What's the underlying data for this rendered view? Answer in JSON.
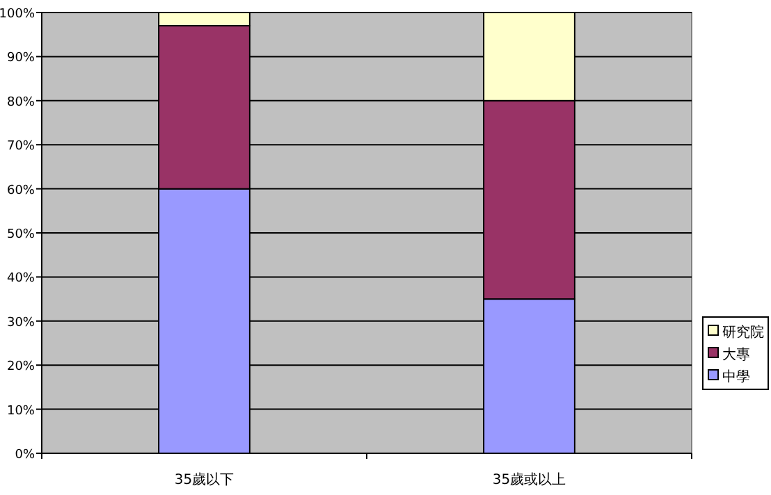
{
  "chart_data": {
    "type": "bar",
    "stacked": true,
    "categories": [
      "35歲以下",
      "35歲或以上"
    ],
    "series": [
      {
        "name": "中學",
        "color": "#9999ff",
        "values": [
          60,
          35
        ]
      },
      {
        "name": "大專",
        "color": "#993366",
        "values": [
          37,
          45
        ]
      },
      {
        "name": "研究院",
        "color": "#ffffcc",
        "values": [
          3,
          20
        ]
      }
    ],
    "ylim": [
      0,
      100
    ],
    "yticks": [
      {
        "value": 0,
        "label": "0%"
      },
      {
        "value": 10,
        "label": "10%"
      },
      {
        "value": 20,
        "label": "20%"
      },
      {
        "value": 30,
        "label": "30%"
      },
      {
        "value": 40,
        "label": "40%"
      },
      {
        "value": 50,
        "label": "50%"
      },
      {
        "value": 60,
        "label": "60%"
      },
      {
        "value": 70,
        "label": "70%"
      },
      {
        "value": 80,
        "label": "80%"
      },
      {
        "value": 90,
        "label": "90%"
      },
      {
        "value": 100,
        "label": "100%"
      }
    ],
    "grid": "y",
    "legend": "right"
  }
}
